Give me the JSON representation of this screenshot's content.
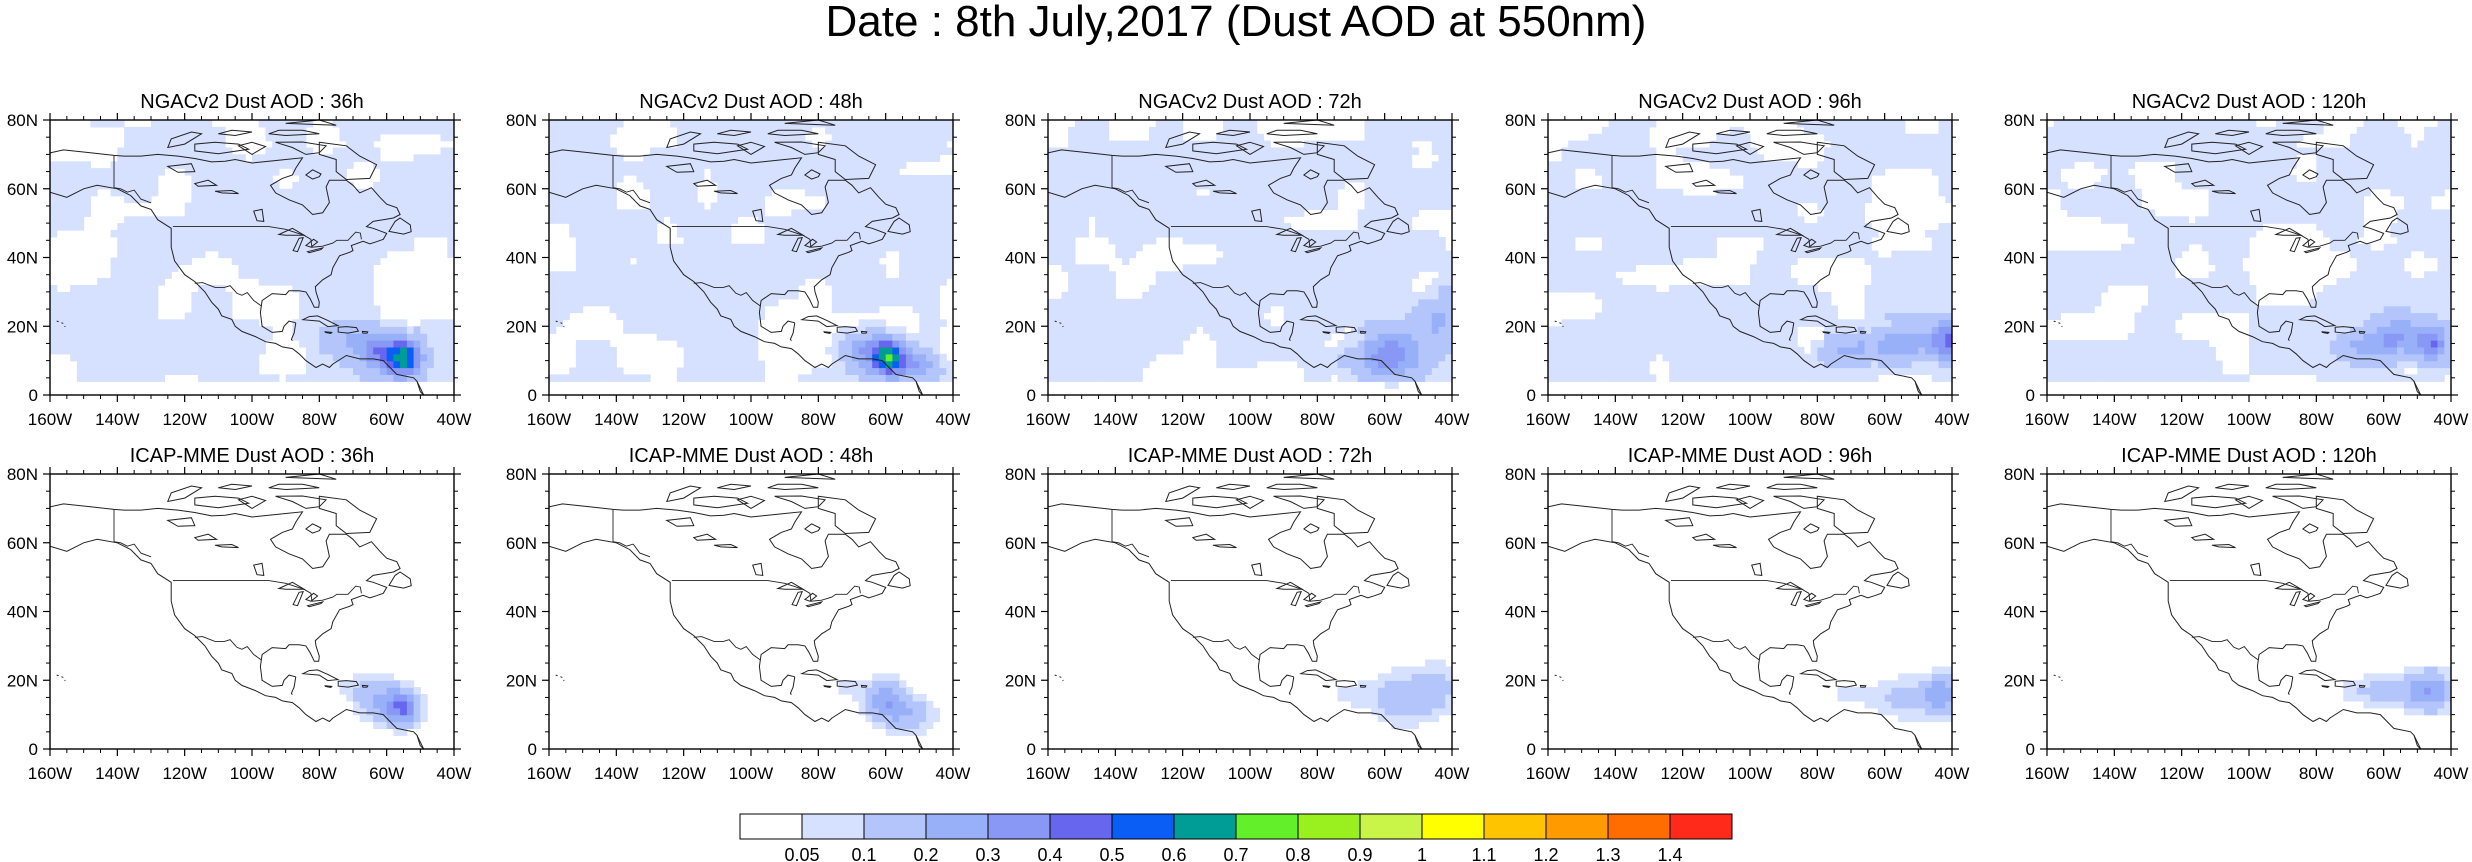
{
  "title": "Date : 8th July,2017 (Dust AOD at 550nm)",
  "colors": {
    "land_outline": "#222222",
    "frame": "#000000",
    "background": "#ffffff"
  },
  "map": {
    "lon_ticks": [
      "160W",
      "140W",
      "120W",
      "100W",
      "80W",
      "60W",
      "40W"
    ],
    "lat_ticks": [
      "0",
      "20N",
      "40N",
      "60N",
      "80N"
    ],
    "lon_range": [
      -160,
      -40
    ],
    "lat_range": [
      0,
      80
    ]
  },
  "panels": [
    {
      "title": "NGACv2 Dust AOD : 36h",
      "row": 0,
      "col": 0,
      "model": "NGACv2",
      "hour": 36
    },
    {
      "title": "NGACv2 Dust AOD : 48h",
      "row": 0,
      "col": 1,
      "model": "NGACv2",
      "hour": 48
    },
    {
      "title": "NGACv2 Dust AOD : 72h",
      "row": 0,
      "col": 2,
      "model": "NGACv2",
      "hour": 72
    },
    {
      "title": "NGACv2 Dust AOD : 96h",
      "row": 0,
      "col": 3,
      "model": "NGACv2",
      "hour": 96
    },
    {
      "title": "NGACv2 Dust AOD : 120h",
      "row": 0,
      "col": 4,
      "model": "NGACv2",
      "hour": 120
    },
    {
      "title": "ICAP-MME Dust AOD : 36h",
      "row": 1,
      "col": 0,
      "model": "ICAP-MME",
      "hour": 36
    },
    {
      "title": "ICAP-MME Dust AOD : 48h",
      "row": 1,
      "col": 1,
      "model": "ICAP-MME",
      "hour": 48
    },
    {
      "title": "ICAP-MME Dust AOD : 72h",
      "row": 1,
      "col": 2,
      "model": "ICAP-MME",
      "hour": 72
    },
    {
      "title": "ICAP-MME Dust AOD : 96h",
      "row": 1,
      "col": 3,
      "model": "ICAP-MME",
      "hour": 96
    },
    {
      "title": "ICAP-MME Dust AOD : 120h",
      "row": 1,
      "col": 4,
      "model": "ICAP-MME",
      "hour": 120
    }
  ],
  "colorbar": {
    "colors": [
      "#ffffff",
      "#d6e0ff",
      "#b4c5fb",
      "#98b0f8",
      "#8a98f5",
      "#6666ee",
      "#0a5ef5",
      "#009c96",
      "#63ef2a",
      "#99f01e",
      "#c8f547",
      "#ffff00",
      "#ffc400",
      "#ff9b00",
      "#ff6d00",
      "#ff2a1a"
    ],
    "labels": [
      "0.05",
      "0.1",
      "0.2",
      "0.3",
      "0.4",
      "0.5",
      "0.6",
      "0.7",
      "0.8",
      "0.9",
      "1",
      "1.1",
      "1.2",
      "1.3",
      "1.4"
    ]
  }
}
